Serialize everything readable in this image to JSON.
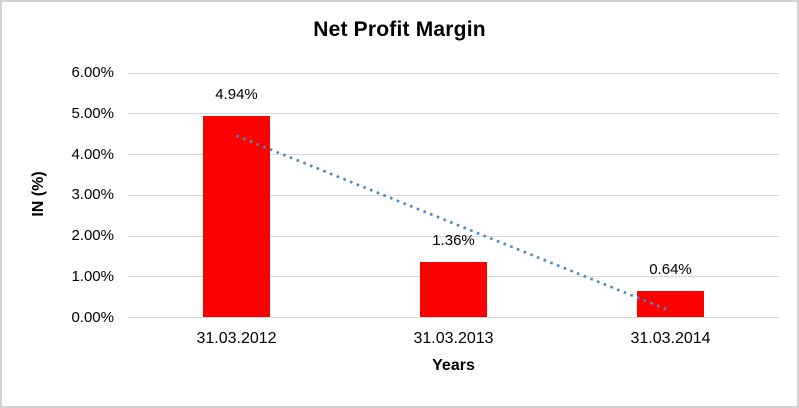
{
  "chart_data": {
    "type": "bar",
    "title": "Net Profit Margin",
    "xlabel": "Years",
    "ylabel": "IN (%)",
    "categories": [
      "31.03.2012",
      "31.03.2013",
      "31.03.2014"
    ],
    "values": [
      4.94,
      1.36,
      0.64
    ],
    "data_labels": [
      "4.94%",
      "1.36%",
      "0.64%"
    ],
    "ylim": [
      0,
      6
    ],
    "y_ticks": [
      {
        "value": 6,
        "label": "6.00%"
      },
      {
        "value": 5,
        "label": "5.00%"
      },
      {
        "value": 4,
        "label": "4.00%"
      },
      {
        "value": 3,
        "label": "3.00%"
      },
      {
        "value": 2,
        "label": "2.00%"
      },
      {
        "value": 1,
        "label": "1.00%"
      },
      {
        "value": 0,
        "label": "0.00%"
      }
    ],
    "grid": true,
    "legend": "none",
    "colors": {
      "bar": "#ff0000",
      "gridline": "#d9d9d9",
      "trendline": "#4a89c8",
      "text": "#000000",
      "frame_border": "#d2d2d2"
    },
    "trendline": {
      "type": "linear",
      "line_style": "dotted",
      "start_value": 4.46,
      "end_value": 0.16
    }
  }
}
